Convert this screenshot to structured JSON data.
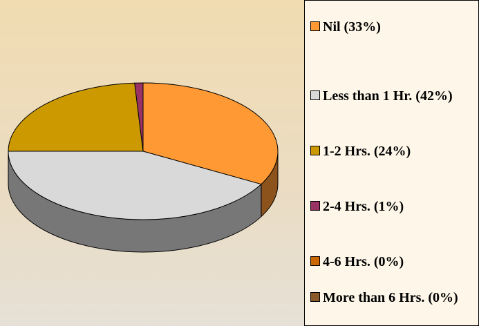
{
  "chart_data": {
    "type": "pie",
    "categories": [
      "Nil (33%)",
      "Less than 1 Hr. (42%)",
      "1-2 Hrs. (24%)",
      "2-4 Hrs. (1%)",
      "4-6 Hrs. (0%)",
      "More than 6 Hrs. (0%)"
    ],
    "values": [
      33,
      42,
      24,
      1,
      0,
      0
    ],
    "colors": [
      "#ff9933",
      "#d9d9d9",
      "#cc9900",
      "#993366",
      "#cc6600",
      "#8b5a2b"
    ],
    "legend": "right"
  }
}
